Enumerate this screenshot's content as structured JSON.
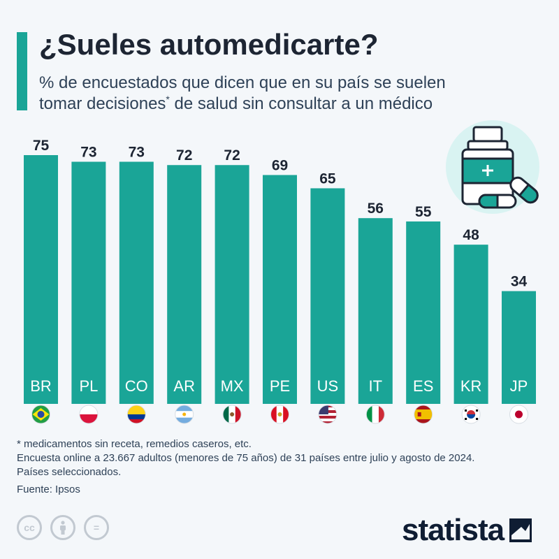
{
  "header": {
    "title": "¿Sueles automedicarte?",
    "subtitle_line1": "% de encuestados que dicen que en su país se suelen",
    "subtitle_line2a": "tomar decisiones",
    "subtitle_ast": "*",
    "subtitle_line2b": " de salud sin consultar a un médico"
  },
  "chart_data": {
    "type": "bar",
    "categories": [
      "BR",
      "PL",
      "CO",
      "AR",
      "MX",
      "PE",
      "US",
      "IT",
      "ES",
      "KR",
      "JP"
    ],
    "values": [
      75,
      73,
      73,
      72,
      72,
      69,
      65,
      56,
      55,
      48,
      34
    ],
    "bar_color": "#1aa597",
    "label_color": "#1d2533",
    "ylim": [
      0,
      75
    ],
    "grid": false,
    "legend": "none"
  },
  "flags": [
    "brazil-flag-icon",
    "poland-flag-icon",
    "colombia-flag-icon",
    "argentina-flag-icon",
    "mexico-flag-icon",
    "peru-flag-icon",
    "usa-flag-icon",
    "italy-flag-icon",
    "spain-flag-icon",
    "south-korea-flag-icon",
    "japan-flag-icon"
  ],
  "notes": {
    "footnote": "* medicamentos sin receta, remedios caseros, etc.",
    "survey": "Encuesta online a 23.667 adultos (menores de 75 años) de 31 países entre julio y agosto de 2024.",
    "selection": "Países seleccionados.",
    "source": "Fuente: Ipsos"
  },
  "footer": {
    "cc_label": "cc",
    "nd_label": "=",
    "brand": "statista"
  },
  "colors": {
    "accent": "#1aa597",
    "background": "#f4f7fa",
    "title": "#1d2533",
    "brand": "#0f1d33"
  }
}
